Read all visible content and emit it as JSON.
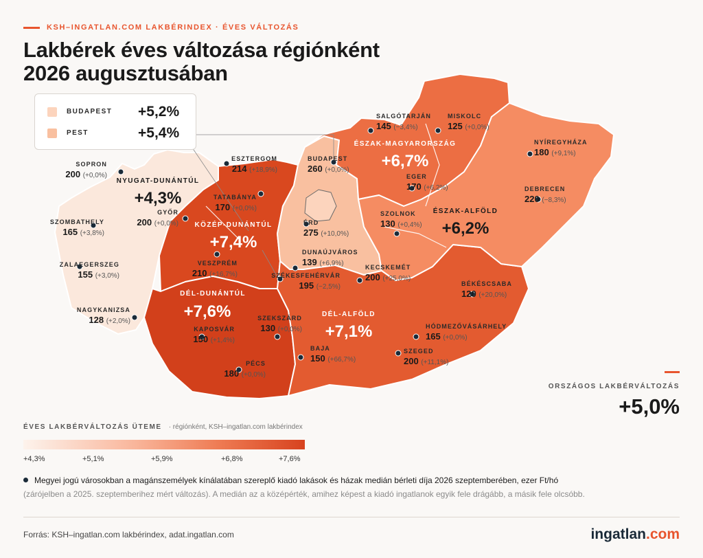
{
  "header": {
    "kicker": "KSH–INGATLAN.COM LAKBÉRINDEX · ÉVES VÁLTOZÁS",
    "title_line1": "Lakbérek éves változása régiónként",
    "title_line2": "2026 augusztusában"
  },
  "legend": {
    "items": [
      {
        "name": "BUDAPEST",
        "value": "+5,2%",
        "color": "#fcd4bd"
      },
      {
        "name": "PEST",
        "value": "+5,4%",
        "color": "#f9c0a0"
      }
    ]
  },
  "regions": [
    {
      "id": "nyugat-dunantul",
      "name": "NYUGAT-DUNÁNTÚL",
      "value": "+4,3%",
      "color": "#fbe8dc"
    },
    {
      "id": "kozep-dunantul",
      "name": "KÖZÉP-DUNÁNTÚL",
      "value": "+7,4%",
      "color": "#d9481f"
    },
    {
      "id": "del-dunantul",
      "name": "DÉL-DUNÁNTÚL",
      "value": "+7,6%",
      "color": "#d2401b"
    },
    {
      "id": "del-alfold",
      "name": "DÉL-ALFÖLD",
      "value": "+7,1%",
      "color": "#e35b30"
    },
    {
      "id": "eszak-magyarorszag",
      "name": "ÉSZAK-MAGYARORSZÁG",
      "value": "+6,7%",
      "color": "#ec6e43"
    },
    {
      "id": "eszak-alfold",
      "name": "ÉSZAK-ALFÖLD",
      "value": "+6,2%",
      "color": "#f58c62"
    }
  ],
  "cities": [
    {
      "name": "SOPRON",
      "value": "200",
      "change": "(+0,0%)"
    },
    {
      "name": "ESZTERGOM",
      "value": "214",
      "change": "(+18,9%)"
    },
    {
      "name": "TATABÁNYA",
      "value": "170",
      "change": "(+0,0%)"
    },
    {
      "name": "GYŐR",
      "value": "200",
      "change": "(+0,0%)"
    },
    {
      "name": "SZOMBATHELY",
      "value": "165",
      "change": "(+3,8%)"
    },
    {
      "name": "ZALAEGERSZEG",
      "value": "155",
      "change": "(+3,0%)"
    },
    {
      "name": "VESZPRÉM",
      "value": "210",
      "change": "(+16,7%)"
    },
    {
      "name": "NAGYKANIZSA",
      "value": "128",
      "change": "(+2,0%)"
    },
    {
      "name": "KAPOSVÁR",
      "value": "150",
      "change": "(+1,4%)"
    },
    {
      "name": "PÉCS",
      "value": "180",
      "change": "(+0,0%)"
    },
    {
      "name": "SZEKSZÁRD",
      "value": "130",
      "change": "(+0,0%)"
    },
    {
      "name": "SZÉKESFEHÉRVÁR",
      "value": "195",
      "change": "(−2,5%)"
    },
    {
      "name": "DUNAÚJVÁROS",
      "value": "139",
      "change": "(+6,9%)"
    },
    {
      "name": "ÉRD",
      "value": "275",
      "change": "(+10,0%)"
    },
    {
      "name": "BUDAPEST",
      "value": "260",
      "change": "(+0,0%)"
    },
    {
      "name": "SALGÓTARJÁN",
      "value": "145",
      "change": "(−3,4%)"
    },
    {
      "name": "MISKOLC",
      "value": "125",
      "change": "(+0,0%)"
    },
    {
      "name": "EGER",
      "value": "170",
      "change": "(+6,2%)"
    },
    {
      "name": "NYÍREGYHÁZA",
      "value": "180",
      "change": "(+9,1%)"
    },
    {
      "name": "DEBRECEN",
      "value": "220",
      "change": "(−8,3%)"
    },
    {
      "name": "SZOLNOK",
      "value": "130",
      "change": "(+0,4%)"
    },
    {
      "name": "KECSKEMÉT",
      "value": "200",
      "change": "(+25,0%)"
    },
    {
      "name": "BÉKÉSCSABA",
      "value": "120",
      "change": "(+20,0%)"
    },
    {
      "name": "HÓDMEZŐVÁSÁRHELY",
      "value": "165",
      "change": "(+0,0%)"
    },
    {
      "name": "SZEGED",
      "value": "200",
      "change": "(+11,1%)"
    },
    {
      "name": "BAJA",
      "value": "150",
      "change": "(+66,7%)"
    }
  ],
  "national": {
    "label": "ORSZÁGOS LAKBÉRVÁLTOZÁS",
    "value": "+5,0%"
  },
  "scale": {
    "title": "ÉVES LAKBÉRVÁLTOZÁS ÜTEME",
    "subtitle": "· régiónként, KSH–ingatlan.com lakbérindex",
    "ticks": [
      "+4,3%",
      "+5,1%",
      "+5,9%",
      "+6,8%",
      "+7,6%"
    ]
  },
  "note": {
    "line1": "Megyei jogú városokban a magánszemélyek kínálatában szereplő kiadó lakások és házak medián bérleti díja 2026 szeptemberében, ezer Ft/hó",
    "line2": "(zárójelben a 2025. szeptemberihez mért változás). A medián az a középérték, amihez képest a kiadó ingatlanok egyik fele drágább, a másik fele olcsóbb."
  },
  "footer": {
    "source": "Forrás: KSH–ingatlan.com lakbérindex, adat.ingatlan.com",
    "brand_main": "ingatlan",
    "brand_suffix": ".com"
  }
}
